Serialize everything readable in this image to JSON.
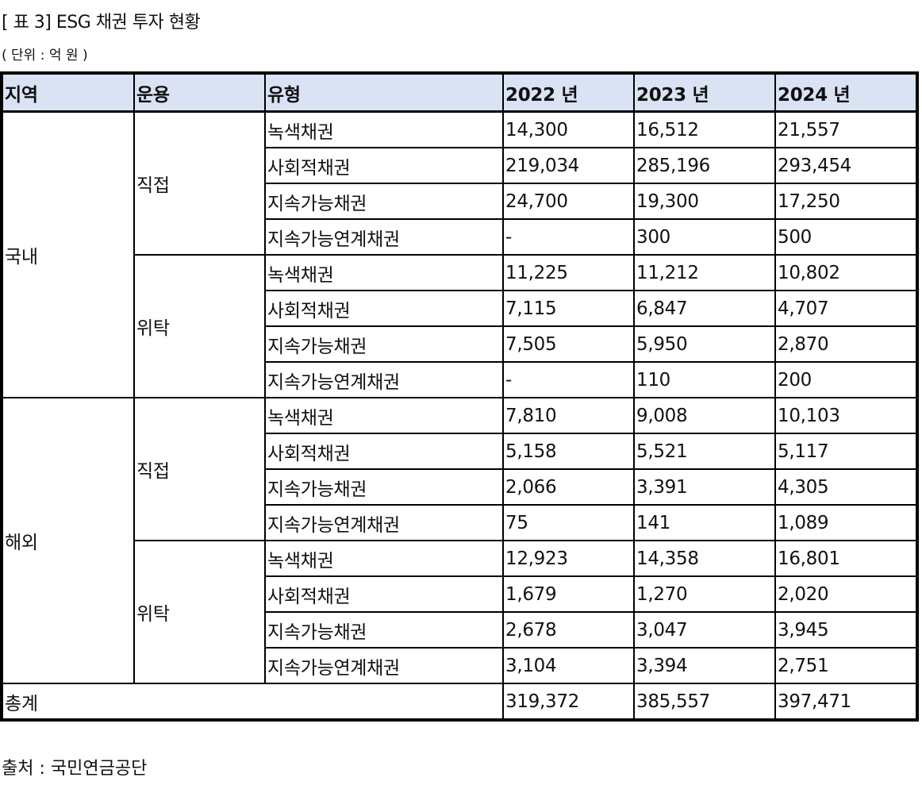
{
  "title": "[ 표 3] ESG 채권 투자 현황",
  "unit": "( 단위 : 억 원 )",
  "table": {
    "headers": [
      "지역",
      "운용",
      "유형",
      "2022 년",
      "2023 년",
      "2024 년"
    ],
    "regions": [
      {
        "name": "국내",
        "groups": [
          {
            "name": "직접",
            "rows": [
              {
                "type": "녹색채권",
                "y2022": "14,300",
                "y2023": "16,512",
                "y2024": "21,557"
              },
              {
                "type": "사회적채권",
                "y2022": "219,034",
                "y2023": "285,196",
                "y2024": "293,454"
              },
              {
                "type": "지속가능채권",
                "y2022": "24,700",
                "y2023": "19,300",
                "y2024": "17,250"
              },
              {
                "type": "지속가능연계채권",
                "y2022": "-",
                "y2023": "300",
                "y2024": "500"
              }
            ]
          },
          {
            "name": "위탁",
            "rows": [
              {
                "type": "녹색채권",
                "y2022": "11,225",
                "y2023": "11,212",
                "y2024": "10,802"
              },
              {
                "type": "사회적채권",
                "y2022": "7,115",
                "y2023": "6,847",
                "y2024": "4,707"
              },
              {
                "type": "지속가능채권",
                "y2022": "7,505",
                "y2023": "5,950",
                "y2024": "2,870"
              },
              {
                "type": "지속가능연계채권",
                "y2022": "-",
                "y2023": "110",
                "y2024": "200"
              }
            ]
          }
        ]
      },
      {
        "name": "해외",
        "groups": [
          {
            "name": "직접",
            "rows": [
              {
                "type": "녹색채권",
                "y2022": "7,810",
                "y2023": "9,008",
                "y2024": "10,103"
              },
              {
                "type": "사회적채권",
                "y2022": "5,158",
                "y2023": "5,521",
                "y2024": "5,117"
              },
              {
                "type": "지속가능채권",
                "y2022": "2,066",
                "y2023": "3,391",
                "y2024": "4,305"
              },
              {
                "type": "지속가능연계채권",
                "y2022": "75",
                "y2023": "141",
                "y2024": "1,089"
              }
            ]
          },
          {
            "name": "위탁",
            "rows": [
              {
                "type": "녹색채권",
                "y2022": "12,923",
                "y2023": "14,358",
                "y2024": "16,801"
              },
              {
                "type": "사회적채권",
                "y2022": "1,679",
                "y2023": "1,270",
                "y2024": "2,020"
              },
              {
                "type": "지속가능채권",
                "y2022": "2,678",
                "y2023": "3,047",
                "y2024": "3,945"
              },
              {
                "type": "지속가능연계채권",
                "y2022": "3,104",
                "y2023": "3,394",
                "y2024": "2,751"
              }
            ]
          }
        ]
      }
    ],
    "total": {
      "label": "총계",
      "y2022": "319,372",
      "y2023": "385,557",
      "y2024": "397,471"
    }
  },
  "source": "출처 : 국민연금공단",
  "colors": {
    "header_bg": "#dae3f3",
    "border": "#000000"
  }
}
